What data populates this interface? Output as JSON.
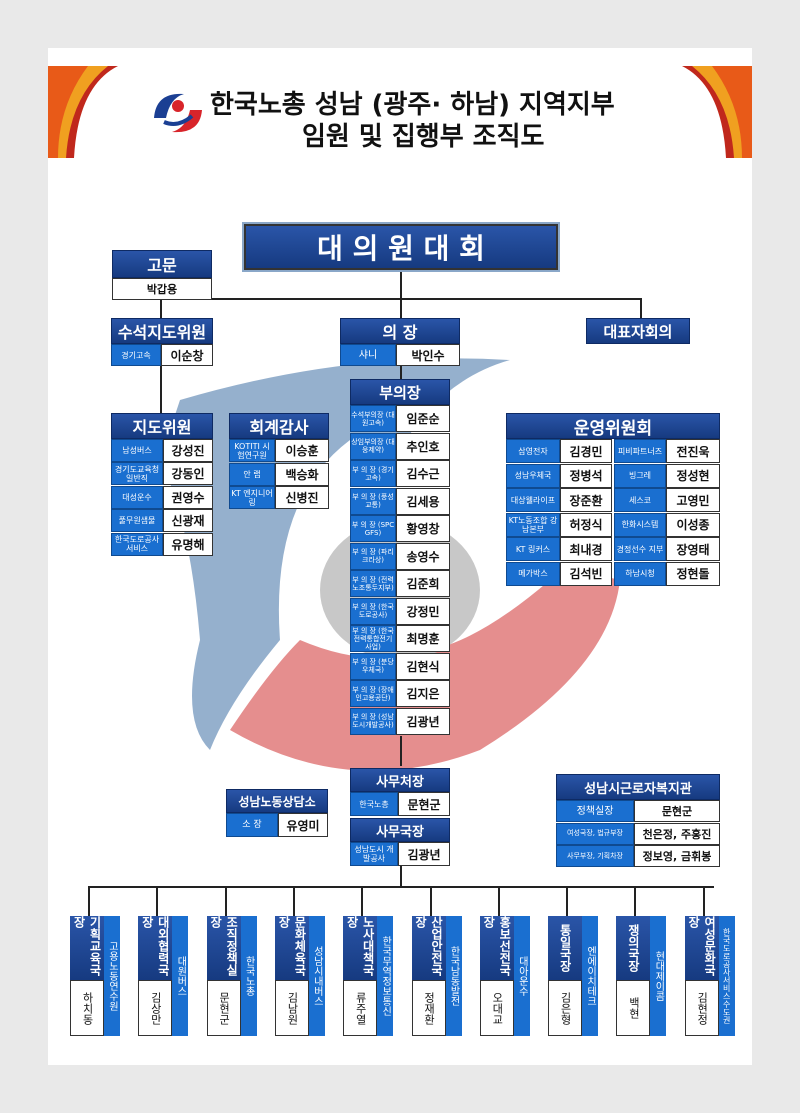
{
  "title": {
    "line1": "한국노총 성남 (광주· 하남) 지역지부",
    "line2": "임원 및 집행부 조직도"
  },
  "colors": {
    "navy": "#163a80",
    "blue": "#1a6fd0",
    "swirl_blue": "#8aa7c8",
    "swirl_red": "#e07a7a"
  },
  "top": {
    "title": "대 의 원 대 회"
  },
  "advisor": {
    "title": "고문",
    "name": "박갑용"
  },
  "chief_guidance": {
    "title": "수석지도위원",
    "org": "경기고속",
    "name": "이순창"
  },
  "chair": {
    "title": "의 장",
    "org": "샤니",
    "name": "박인수"
  },
  "rep_council": {
    "title": "대표자회의"
  },
  "guidance": {
    "title": "지도위원",
    "items": [
      {
        "org": "남성버스",
        "name": "강성진"
      },
      {
        "org": "경기도교육청 일반직",
        "name": "강동인"
      },
      {
        "org": "대성운수",
        "name": "권영수"
      },
      {
        "org": "풀무원샘물",
        "name": "신광재"
      },
      {
        "org": "한국도로공사 서비스",
        "name": "유명해"
      }
    ]
  },
  "audit": {
    "title": "회계감사",
    "items": [
      {
        "org": "KOTITI 시험연구원",
        "name": "이승훈"
      },
      {
        "org": "안 랩",
        "name": "백승화"
      },
      {
        "org": "KT 엔지니어링",
        "name": "신병진"
      }
    ]
  },
  "vice": {
    "title": "부의장",
    "items": [
      {
        "org": "수석부의장 (대원고속)",
        "name": "임준순"
      },
      {
        "org": "상임부의장 (대웅제약)",
        "name": "추인호"
      },
      {
        "org": "부 의 장 (경기고속)",
        "name": "김수근"
      },
      {
        "org": "부 의 장 (풍성교통)",
        "name": "김세용"
      },
      {
        "org": "부 의 장 (SPC GFS)",
        "name": "황영창"
      },
      {
        "org": "부 의 장 (파리크라상)",
        "name": "송영수"
      },
      {
        "org": "부 의 장 (전력노조통두지부)",
        "name": "김준희"
      },
      {
        "org": "부 의 장 (한국도로공사)",
        "name": "강정민"
      },
      {
        "org": "부 의 장 (한국전력통합전기사업)",
        "name": "최명훈"
      },
      {
        "org": "부 의 장 (분당우체국)",
        "name": "김현식"
      },
      {
        "org": "부 의 장 (장애인고용공단)",
        "name": "김지은"
      },
      {
        "org": "부 의 장 (성남도시개발공사)",
        "name": "김광년"
      }
    ]
  },
  "ops": {
    "title": "운영위원회",
    "items": [
      {
        "org": "삼영전자",
        "name": "김경민",
        "org2": "피비파트너즈",
        "name2": "전진욱"
      },
      {
        "org": "성남우체국",
        "name": "정병석",
        "org2": "빙그레",
        "name2": "정성현"
      },
      {
        "org": "대상웰라이프",
        "name": "장준환",
        "org2": "세스코",
        "name2": "고영민"
      },
      {
        "org": "KT노동조합 강남본부",
        "name": "허정식",
        "org2": "한화시스템",
        "name2": "이성종"
      },
      {
        "org": "KT 링커스",
        "name": "최내경",
        "org2": "경정선수 지부",
        "name2": "장영태"
      },
      {
        "org": "메가박스",
        "name": "김석빈",
        "org2": "하남시청",
        "name2": "정현돌"
      }
    ]
  },
  "sec_general": {
    "title": "사무처장",
    "org": "한국노총",
    "name": "문현군"
  },
  "sec_chief": {
    "title": "사무국장",
    "org": "성남도시 개발공사",
    "name": "김광년"
  },
  "counsel": {
    "title": "성남노동상담소",
    "org": "소 장",
    "name": "유영미"
  },
  "welfare": {
    "title": "성남시근로자복지관",
    "items": [
      {
        "org": "정책실장",
        "name": "문현군"
      },
      {
        "org": "여성국장, 법규부장",
        "name": "천은정, 주홍진"
      },
      {
        "org": "사무부장, 기획차장",
        "name": "정보영, 금휘봉"
      }
    ]
  },
  "bureaus": [
    {
      "title": "기획교육국장",
      "org": "고용노동연수원",
      "name": "하치동"
    },
    {
      "title": "대외협력국장",
      "org": "대원버스",
      "name": "김상만"
    },
    {
      "title": "조직정책실장",
      "org": "한국노총",
      "name": "문현군"
    },
    {
      "title": "문화체육국장",
      "org": "성남시내버스",
      "name": "김남원"
    },
    {
      "title": "노사대책국장",
      "org": "한국무역정보통신",
      "name": "류주열"
    },
    {
      "title": "산업안전국장",
      "org": "한국남동발전",
      "name": "정재환"
    },
    {
      "title": "홍보선전국장",
      "org": "대아운수",
      "name": "오대교"
    },
    {
      "title": "통일국장",
      "org": "엔에이치테크",
      "name": "김은형"
    },
    {
      "title": "쟁의국장",
      "org": "현대제이콤",
      "name": "백현"
    },
    {
      "title": "여성문화국장",
      "org": "한국도로공사서비스수도권",
      "name": "김현정"
    }
  ]
}
